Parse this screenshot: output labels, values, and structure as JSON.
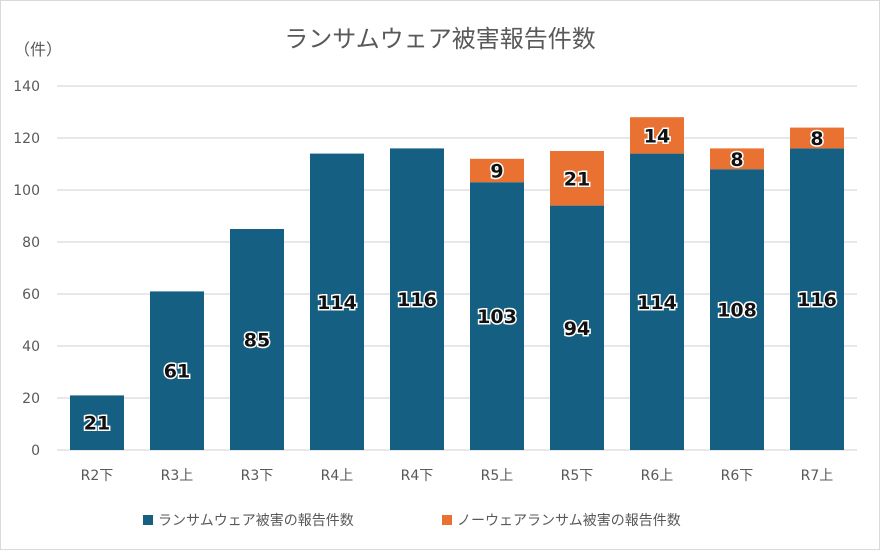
{
  "chart_data": {
    "type": "bar",
    "stacked": true,
    "title": "ランサムウェア被害報告件数",
    "ylabel": "（件）",
    "xlabel": "",
    "ylim": [
      0,
      140
    ],
    "yticks": [
      0,
      20,
      40,
      60,
      80,
      100,
      120,
      140
    ],
    "grid": true,
    "legend": "bottom",
    "categories": [
      "R2下",
      "R3上",
      "R3下",
      "R4上",
      "R4下",
      "R5上",
      "R5下",
      "R6上",
      "R6下",
      "R7上"
    ],
    "series": [
      {
        "name": "ランサムウェア被害の報告件数",
        "color": "#156082",
        "values": [
          21,
          61,
          85,
          114,
          116,
          103,
          94,
          114,
          108,
          116
        ]
      },
      {
        "name": "ノーウェアランサム被害の報告件数",
        "color": "#e97132",
        "values": [
          0,
          0,
          0,
          0,
          0,
          9,
          21,
          14,
          8,
          8
        ]
      }
    ]
  }
}
